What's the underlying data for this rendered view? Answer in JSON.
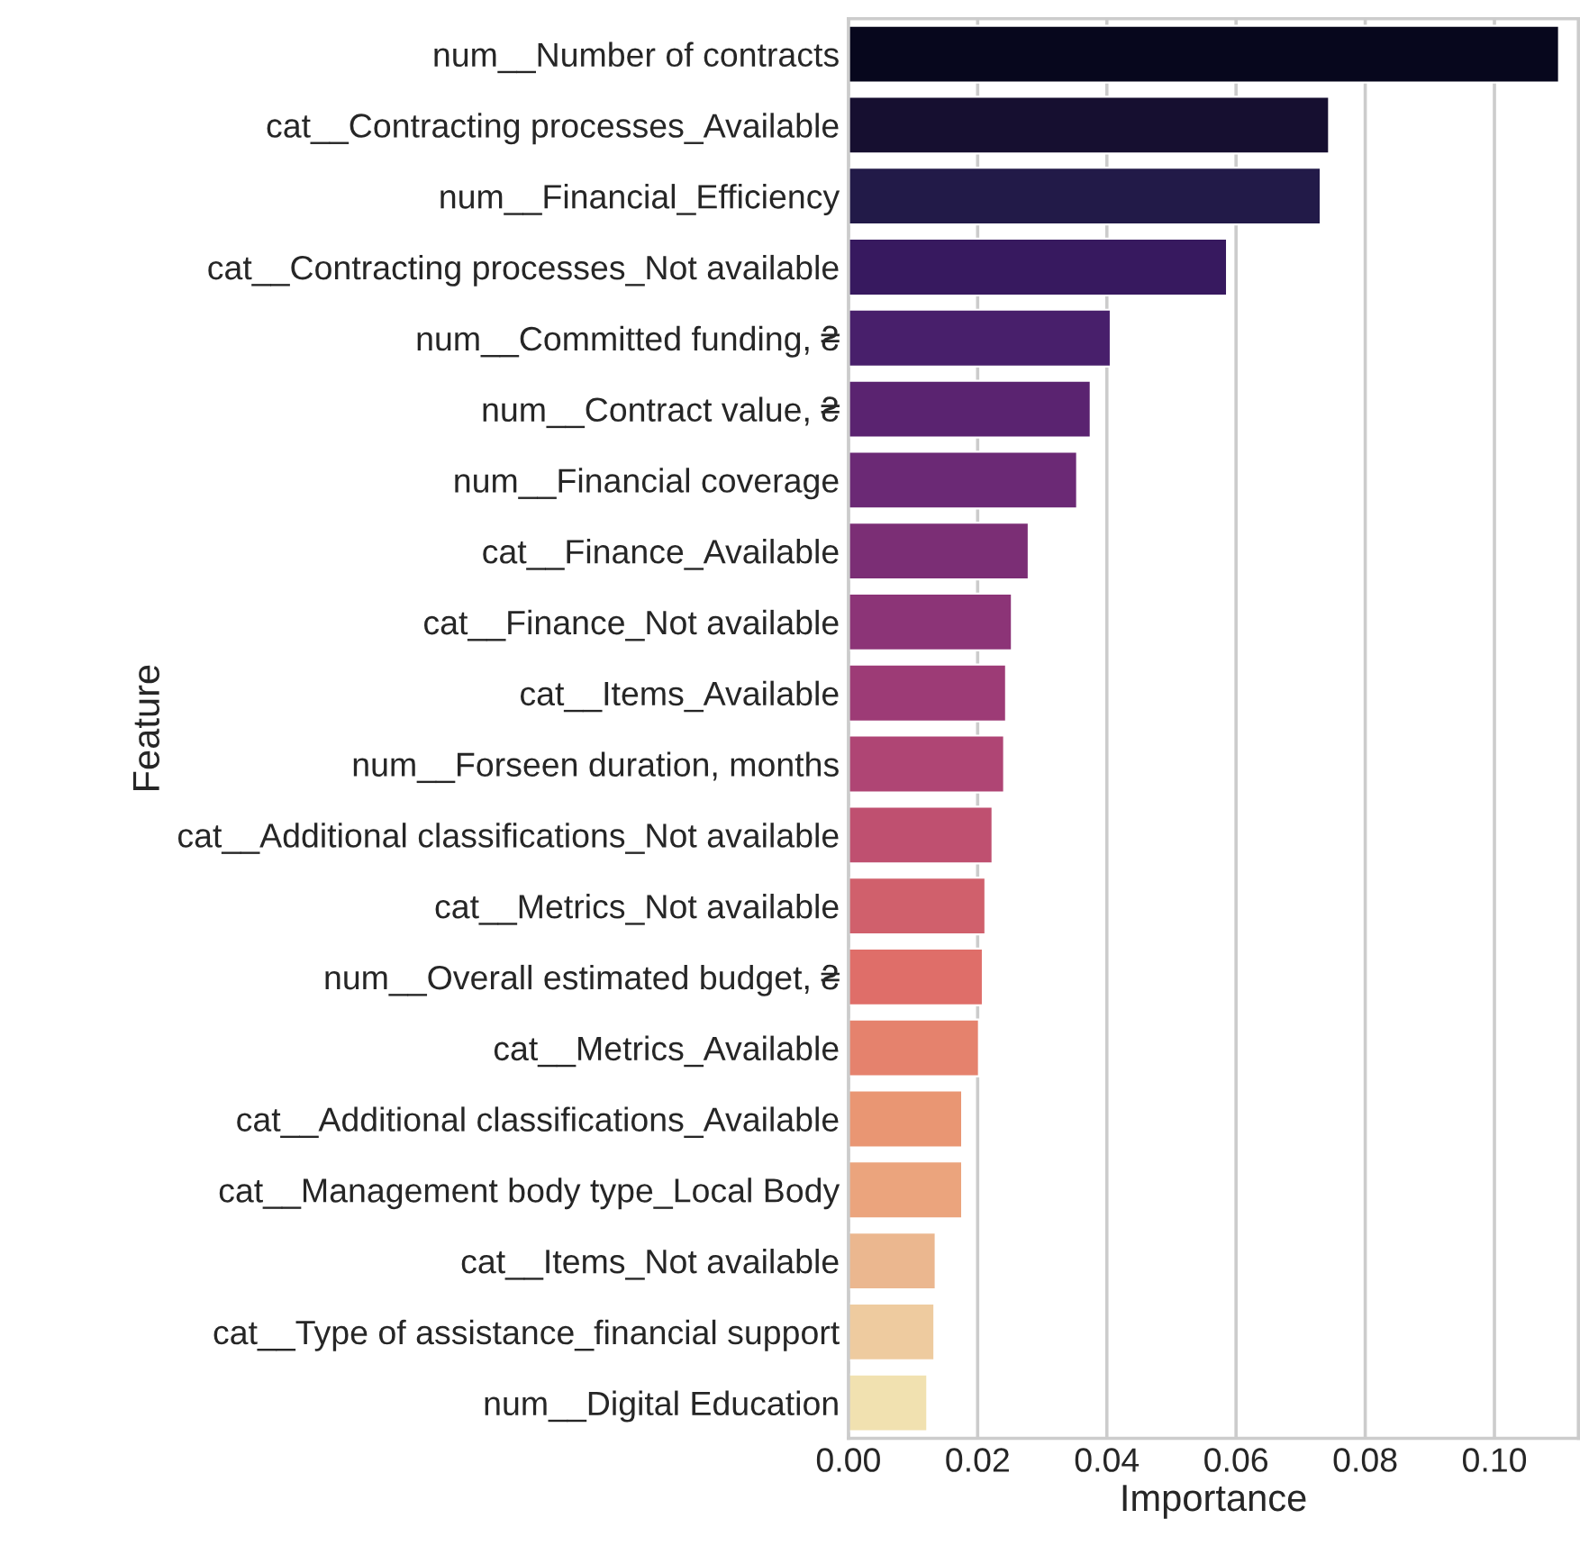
{
  "chart_data": {
    "type": "bar",
    "orientation": "horizontal",
    "xlabel": "Importance",
    "ylabel": "Feature",
    "categories": [
      "num__Number of contracts",
      "cat__Contracting processes_Available",
      "num__Financial_Efficiency",
      "cat__Contracting processes_Not available",
      "num__Committed funding, ₴",
      "num__Contract value, ₴",
      "num__Financial coverage",
      "cat__Finance_Available",
      "cat__Finance_Not available",
      "cat__Items_Available",
      "num__Forseen duration, months",
      "cat__Additional classifications_Not available",
      "cat__Metrics_Not available",
      "num__Overall estimated budget, ₴",
      "cat__Metrics_Available",
      "cat__Additional classifications_Available",
      "cat__Management body type_Local Body",
      "cat__Items_Not available",
      "cat__Type of assistance_financial support",
      "num__Digital Education"
    ],
    "values": [
      0.11,
      0.0744,
      0.0731,
      0.0586,
      0.0406,
      0.0375,
      0.0354,
      0.0279,
      0.0253,
      0.0244,
      0.0241,
      0.0223,
      0.0212,
      0.0208,
      0.0202,
      0.0176,
      0.0176,
      0.0135,
      0.0133,
      0.0122
    ],
    "colors": [
      "#07071d",
      "#160f30",
      "#221a48",
      "#37195f",
      "#481f6b",
      "#5a2370",
      "#6b2975",
      "#7b2e75",
      "#8c3477",
      "#9d3b76",
      "#af4574",
      "#bf5070",
      "#d0606c",
      "#df6e69",
      "#e5826d",
      "#e99673",
      "#eba47d",
      "#ebb78f",
      "#eecb9f",
      "#f1e1b0"
    ],
    "xlim": [
      0,
      0.113
    ],
    "xticks": [
      {
        "value": 0,
        "label": "0.00"
      },
      {
        "value": 0.02,
        "label": "0.02"
      },
      {
        "value": 0.04,
        "label": "0.04"
      },
      {
        "value": 0.06,
        "label": "0.06"
      },
      {
        "value": 0.08,
        "label": "0.08"
      },
      {
        "value": 0.1,
        "label": "0.10"
      }
    ],
    "grid": "x"
  }
}
